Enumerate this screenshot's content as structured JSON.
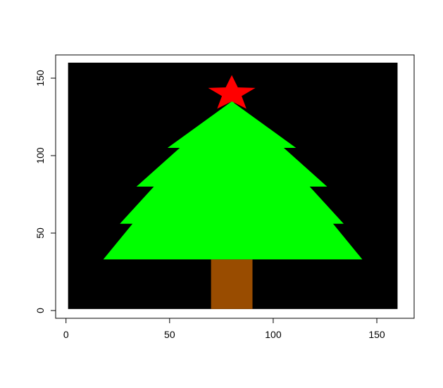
{
  "chart_data": {
    "type": "heatmap",
    "title": "",
    "xlabel": "",
    "ylabel": "",
    "xlim": [
      -5,
      168
    ],
    "ylim": [
      -5,
      165
    ],
    "xticks": [
      0,
      50,
      100,
      150
    ],
    "yticks": [
      0,
      50,
      100,
      150
    ],
    "grid": false,
    "legend": "none",
    "raster": {
      "x": [
        1,
        160
      ],
      "y": [
        1,
        160
      ]
    },
    "colors": {
      "background": "#000000",
      "tree": "#00ff00",
      "star": "#ff0000",
      "trunk": "#994c00"
    },
    "tree_tiers": [
      {
        "bottom": 33,
        "top": 135,
        "x_left": 18,
        "x_right": 143
      },
      {
        "bottom": 56,
        "top": 135,
        "x_left": 26,
        "x_right": 134
      },
      {
        "bottom": 80,
        "top": 135,
        "x_left": 34,
        "x_right": 126
      },
      {
        "bottom": 105,
        "top": 135,
        "x_left": 49,
        "x_right": 111
      }
    ],
    "trunk": {
      "x": [
        70,
        90
      ],
      "y": [
        1,
        33
      ]
    },
    "star": {
      "cx": 80,
      "cy": 140,
      "outer_radius": 12,
      "inner_radius": 5
    }
  }
}
